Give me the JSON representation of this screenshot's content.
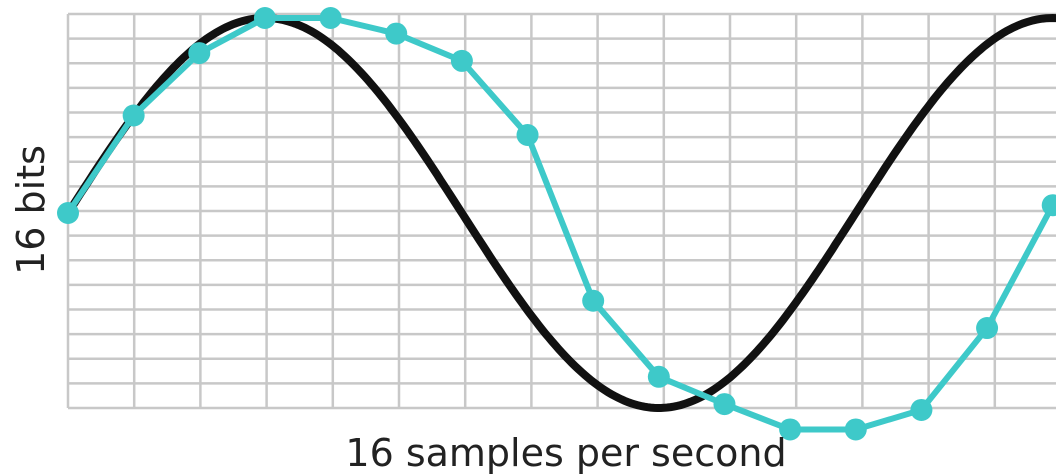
{
  "chart_data": {
    "type": "line",
    "title": "",
    "xlabel": "16 samples per second",
    "ylabel": "16 bits",
    "xlim": [
      0,
      15.05
    ],
    "ylim": [
      -1,
      1
    ],
    "grid": true,
    "colors": {
      "sampled": "#3ec9c9",
      "analog": "#111111",
      "grid": "#c8c8c8"
    },
    "series": [
      {
        "kind": "continuous",
        "function": "sine",
        "amplitude": 1,
        "period": 12,
        "phase": 0
      },
      {
        "kind": "sampled",
        "x": [
          0,
          1,
          2,
          3,
          4,
          5,
          6,
          7,
          8,
          9,
          10,
          11,
          12,
          13,
          14,
          15
        ],
        "y": [
          0,
          0.5,
          0.82,
          1,
          1,
          0.92,
          0.78,
          0.4,
          -0.45,
          -0.84,
          -0.98,
          -1.11,
          -1.11,
          -1.01,
          -0.59,
          0.04
        ]
      }
    ]
  }
}
